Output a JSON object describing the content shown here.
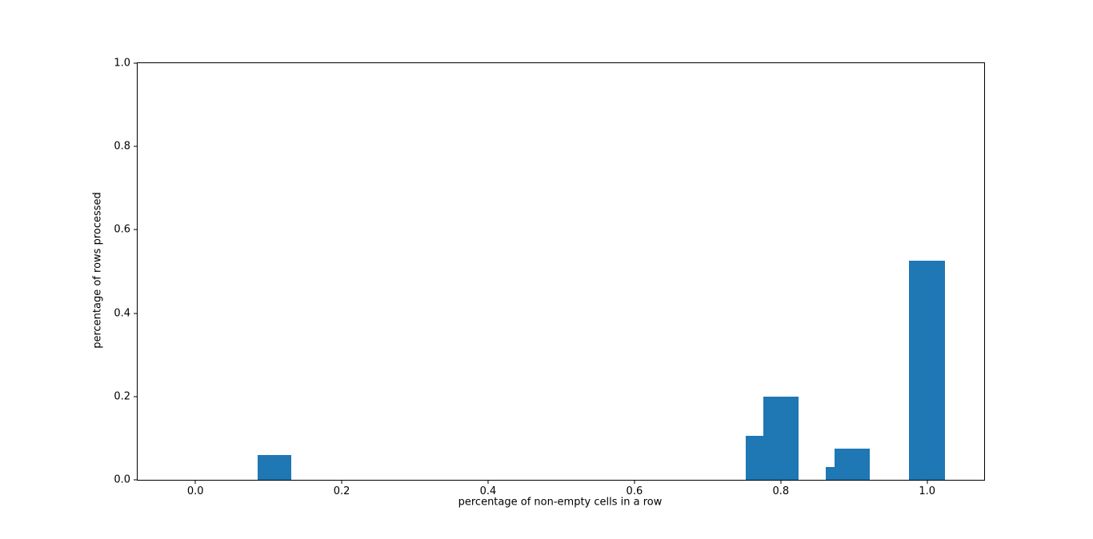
{
  "chart_data": {
    "type": "bar",
    "title": "",
    "xlabel": "percentage of non-empty cells in a row",
    "ylabel": "percentage of rows processed",
    "xlim": [
      -0.079,
      1.078
    ],
    "ylim": [
      0.0,
      1.0
    ],
    "xticks": [
      0.0,
      0.2,
      0.4,
      0.6,
      0.8,
      1.0
    ],
    "yticks": [
      0.0,
      0.2,
      0.4,
      0.6,
      0.8,
      1.0
    ],
    "grid": false,
    "legend": null,
    "bar_color": "#1f77b4",
    "bars": [
      {
        "x_start": 0.085,
        "x_end": 0.131,
        "height": 0.06
      },
      {
        "x_start": 0.752,
        "x_end": 0.776,
        "height": 0.105
      },
      {
        "x_start": 0.776,
        "x_end": 0.824,
        "height": 0.2
      },
      {
        "x_start": 0.861,
        "x_end": 0.874,
        "height": 0.03
      },
      {
        "x_start": 0.874,
        "x_end": 0.922,
        "height": 0.075
      },
      {
        "x_start": 0.975,
        "x_end": 1.024,
        "height": 0.525
      }
    ]
  }
}
